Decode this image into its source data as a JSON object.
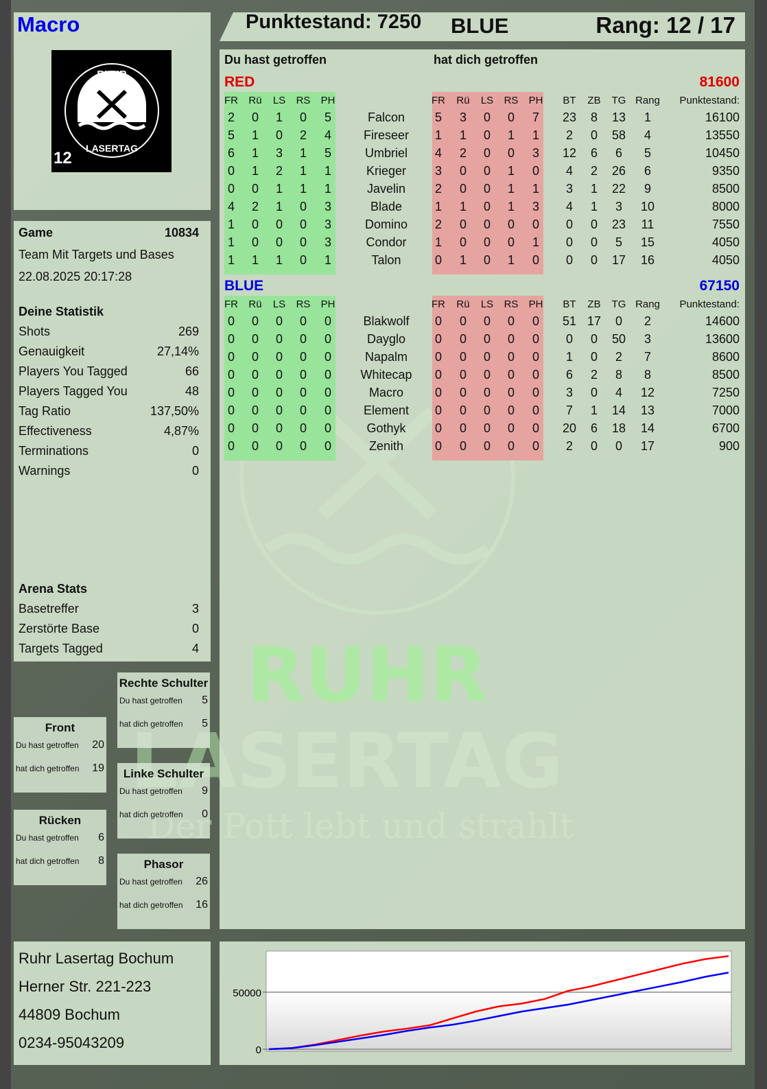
{
  "header": {
    "player": "Macro",
    "score_label": "Punktestand: 7250",
    "team": "BLUE",
    "rank_label": "Rang: 12 / 17"
  },
  "logo": {
    "text_top": "RUHR",
    "text_bottom": "LASERTAG",
    "number": "12"
  },
  "game": {
    "label": "Game",
    "id": "10834",
    "mode": "Team Mit Targets und Bases",
    "datetime": "22.08.2025 20:17:28"
  },
  "stats": {
    "title": "Deine Statistik",
    "items": [
      [
        "Shots",
        "269"
      ],
      [
        "Genauigkeit",
        "27,14%"
      ],
      [
        "Players You Tagged",
        "66"
      ],
      [
        "Players Tagged You",
        "48"
      ],
      [
        "Tag Ratio",
        "137,50%"
      ],
      [
        "Effectiveness",
        "4,87%"
      ],
      [
        "Terminations",
        "0"
      ],
      [
        "Warnings",
        "0"
      ]
    ]
  },
  "arena": {
    "title": "Arena Stats",
    "items": [
      [
        "Basetreffer",
        "3"
      ],
      [
        "Zerstörte Base",
        "0"
      ],
      [
        "Targets Tagged",
        "4"
      ]
    ]
  },
  "body_parts": [
    {
      "name": "Rechte Schulter",
      "hit_label": "Du hast getroffen",
      "hit": "5",
      "got_label": "hat dich getroffen",
      "got": "5"
    },
    {
      "name": "Front",
      "hit_label": "Du hast getroffen",
      "hit": "20",
      "got_label": "hat dich getroffen",
      "got": "19"
    },
    {
      "name": "Linke Schulter",
      "hit_label": "Du hast getroffen",
      "hit": "9",
      "got_label": "hat dich getroffen",
      "got": "0"
    },
    {
      "name": "Rücken",
      "hit_label": "Du hast getroffen",
      "hit": "6",
      "got_label": "hat dich getroffen",
      "got": "8"
    },
    {
      "name": "Phasor",
      "hit_label": "Du hast getroffen",
      "hit": "26",
      "got_label": "hat dich getroffen",
      "got": "16"
    }
  ],
  "address": [
    "Ruhr Lasertag Bochum",
    "Herner Str. 221-223",
    "44809 Bochum",
    "0234-95043209"
  ],
  "table": {
    "hit_title": "Du hast getroffen",
    "got_title": "hat dich getroffen",
    "zone_headers": [
      "FR",
      "Rü",
      "LS",
      "RS",
      "PH"
    ],
    "stat_headers": [
      "BT",
      "ZB",
      "TG",
      "Rang"
    ],
    "score_header": "Punktestand:",
    "teams": [
      {
        "name": "RED",
        "score": "81600",
        "color": "#e00000",
        "players": [
          [
            "Falcon",
            [
              2,
              0,
              1,
              0,
              5
            ],
            [
              5,
              3,
              0,
              0,
              7
            ],
            [
              23,
              8,
              13,
              1
            ],
            16100
          ],
          [
            "Fireseer",
            [
              5,
              1,
              0,
              2,
              4
            ],
            [
              1,
              1,
              0,
              1,
              1
            ],
            [
              2,
              0,
              58,
              4
            ],
            13550
          ],
          [
            "Umbriel",
            [
              6,
              1,
              3,
              1,
              5
            ],
            [
              4,
              2,
              0,
              0,
              3
            ],
            [
              12,
              6,
              6,
              5
            ],
            10450
          ],
          [
            "Krieger",
            [
              0,
              1,
              2,
              1,
              1
            ],
            [
              3,
              0,
              0,
              1,
              0
            ],
            [
              4,
              2,
              26,
              6
            ],
            9350
          ],
          [
            "Javelin",
            [
              0,
              0,
              1,
              1,
              1
            ],
            [
              2,
              0,
              0,
              1,
              1
            ],
            [
              3,
              1,
              22,
              9
            ],
            8500
          ],
          [
            "Blade",
            [
              4,
              2,
              1,
              0,
              3
            ],
            [
              1,
              1,
              0,
              1,
              3
            ],
            [
              4,
              1,
              3,
              10
            ],
            8000
          ],
          [
            "Domino",
            [
              1,
              0,
              0,
              0,
              3
            ],
            [
              2,
              0,
              0,
              0,
              0
            ],
            [
              0,
              0,
              23,
              11
            ],
            7550
          ],
          [
            "Condor",
            [
              1,
              0,
              0,
              0,
              3
            ],
            [
              1,
              0,
              0,
              0,
              1
            ],
            [
              0,
              0,
              5,
              15
            ],
            4050
          ],
          [
            "Talon",
            [
              1,
              1,
              1,
              0,
              1
            ],
            [
              0,
              1,
              0,
              1,
              0
            ],
            [
              0,
              0,
              17,
              16
            ],
            4050
          ]
        ]
      },
      {
        "name": "BLUE",
        "score": "67150",
        "color": "#0000dd",
        "players": [
          [
            "Blakwolf",
            [
              0,
              0,
              0,
              0,
              0
            ],
            [
              0,
              0,
              0,
              0,
              0
            ],
            [
              51,
              17,
              0,
              2
            ],
            14600
          ],
          [
            "Dayglo",
            [
              0,
              0,
              0,
              0,
              0
            ],
            [
              0,
              0,
              0,
              0,
              0
            ],
            [
              0,
              0,
              50,
              3
            ],
            13600
          ],
          [
            "Napalm",
            [
              0,
              0,
              0,
              0,
              0
            ],
            [
              0,
              0,
              0,
              0,
              0
            ],
            [
              1,
              0,
              2,
              7
            ],
            8600
          ],
          [
            "Whitecap",
            [
              0,
              0,
              0,
              0,
              0
            ],
            [
              0,
              0,
              0,
              0,
              0
            ],
            [
              6,
              2,
              8,
              8
            ],
            8500
          ],
          [
            "Macro",
            [
              0,
              0,
              0,
              0,
              0
            ],
            [
              0,
              0,
              0,
              0,
              0
            ],
            [
              3,
              0,
              4,
              12
            ],
            7250
          ],
          [
            "Element",
            [
              0,
              0,
              0,
              0,
              0
            ],
            [
              0,
              0,
              0,
              0,
              0
            ],
            [
              7,
              1,
              14,
              13
            ],
            7000
          ],
          [
            "Gothyk",
            [
              0,
              0,
              0,
              0,
              0
            ],
            [
              0,
              0,
              0,
              0,
              0
            ],
            [
              20,
              6,
              18,
              14
            ],
            6700
          ],
          [
            "Zenith",
            [
              0,
              0,
              0,
              0,
              0
            ],
            [
              0,
              0,
              0,
              0,
              0
            ],
            [
              2,
              0,
              0,
              17
            ],
            900
          ]
        ]
      }
    ]
  },
  "watermark": {
    "line1": "RUHR",
    "line2": "LASERTAG",
    "slogan": "Der Pott lebt und strahlt"
  },
  "chart_data": {
    "type": "line",
    "title": "",
    "xlabel": "",
    "ylabel": "",
    "ylim": [
      0,
      86000
    ],
    "yticks": [
      "0",
      "50000"
    ],
    "grid": true,
    "x": [
      0,
      1,
      2,
      3,
      4,
      5,
      6,
      7,
      8,
      9,
      10,
      11,
      12,
      13,
      14,
      15,
      16,
      17,
      18,
      19,
      20
    ],
    "series": [
      {
        "color": "#ff0000",
        "values": [
          0,
          1000,
          4000,
          8000,
          12000,
          15500,
          18000,
          21000,
          27000,
          33000,
          37500,
          40000,
          44000,
          51000,
          55000,
          60000,
          65000,
          70000,
          75000,
          79000,
          81600
        ]
      },
      {
        "color": "#0000ff",
        "values": [
          0,
          1000,
          3500,
          6500,
          9500,
          12500,
          16000,
          19000,
          21500,
          25000,
          29000,
          33000,
          36000,
          39000,
          43000,
          47000,
          51000,
          55000,
          59000,
          63500,
          67150
        ]
      }
    ]
  }
}
